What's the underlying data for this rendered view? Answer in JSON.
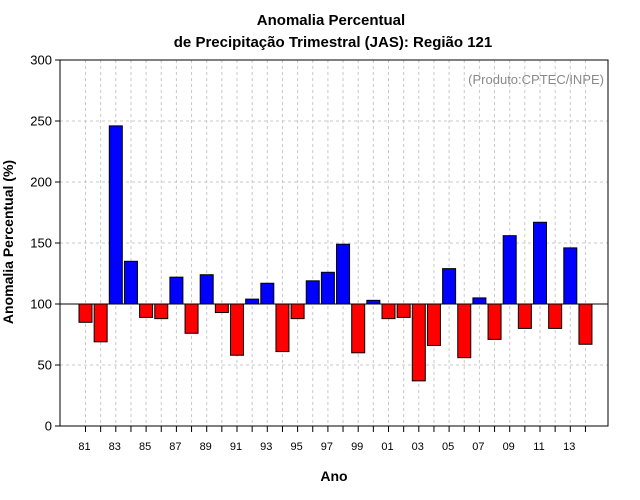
{
  "chart_data": {
    "type": "bar",
    "title": [
      "Anomalia Percentual",
      "de Precipitação Trimestral (JAS): Região 121"
    ],
    "xlabel": "Ano",
    "ylabel": "Anomalia Percentual (%)",
    "annotation": "(Produto:CPTEC/INPE)",
    "baseline": 100,
    "ylim": [
      0,
      300
    ],
    "yticks": [
      0,
      50,
      100,
      150,
      200,
      250,
      300
    ],
    "grid": true,
    "categories": [
      "81",
      "82",
      "83",
      "84",
      "85",
      "86",
      "87",
      "88",
      "89",
      "90",
      "91",
      "92",
      "93",
      "94",
      "95",
      "96",
      "97",
      "98",
      "99",
      "00",
      "01",
      "02",
      "03",
      "04",
      "05",
      "06",
      "07",
      "08",
      "09",
      "10",
      "11",
      "12",
      "13",
      "14"
    ],
    "xtick_labels": [
      "81",
      "",
      "83",
      "",
      "85",
      "",
      "87",
      "",
      "89",
      "",
      "91",
      "",
      "93",
      "",
      "95",
      "",
      "97",
      "",
      "99",
      "",
      "01",
      "",
      "03",
      "",
      "05",
      "",
      "07",
      "",
      "09",
      "",
      "11",
      "",
      "13",
      ""
    ],
    "values": [
      85,
      69,
      246,
      135,
      89,
      88,
      122,
      76,
      124,
      93,
      58,
      104,
      117,
      61,
      88,
      119,
      126,
      149,
      60,
      103,
      88,
      89,
      37,
      66,
      129,
      56,
      105,
      71,
      156,
      80,
      167,
      80,
      146,
      67
    ],
    "colors": {
      "above": "#0000ff",
      "below": "#ff0000",
      "grid": "#c8c8c8",
      "axis": "#000000",
      "credit": "#8a8a8a"
    }
  }
}
